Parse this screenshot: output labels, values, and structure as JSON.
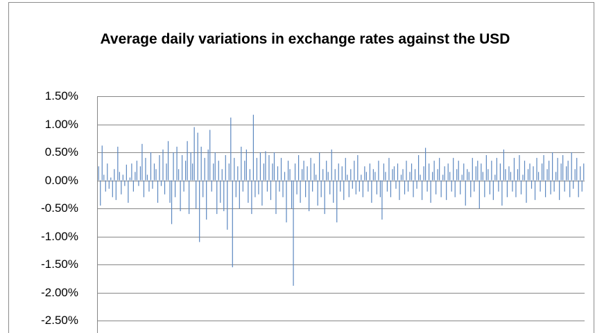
{
  "chart_data": {
    "type": "bar",
    "title": "Average daily variations in exchange rates against the USD",
    "values": [
      0.25,
      -0.45,
      0.62,
      0.1,
      -0.2,
      0.3,
      -0.15,
      0.05,
      -0.3,
      0.2,
      -0.35,
      0.6,
      0.15,
      -0.25,
      0.1,
      -0.1,
      0.28,
      -0.4,
      0.05,
      0.3,
      -0.2,
      0.15,
      0.35,
      -0.1,
      0.25,
      0.65,
      -0.3,
      0.4,
      0.1,
      -0.2,
      0.5,
      -0.15,
      0.3,
      0.2,
      -0.4,
      0.45,
      -0.1,
      0.55,
      -0.25,
      0.3,
      0.7,
      -0.4,
      -0.78,
      0.5,
      -0.3,
      0.6,
      0.2,
      -0.55,
      0.45,
      -0.2,
      0.35,
      0.7,
      -0.6,
      0.5,
      0.3,
      0.95,
      -0.5,
      0.85,
      -1.1,
      0.6,
      -0.3,
      0.4,
      -0.7,
      0.55,
      0.9,
      -0.2,
      0.3,
      0.5,
      -0.6,
      0.35,
      -0.4,
      0.2,
      -0.55,
      0.45,
      -0.88,
      0.3,
      1.12,
      -1.55,
      0.4,
      -0.3,
      0.25,
      -0.5,
      0.6,
      -0.2,
      0.35,
      0.55,
      -0.4,
      0.2,
      -0.6,
      1.17,
      -0.3,
      0.4,
      -0.25,
      0.5,
      -0.45,
      0.3,
      0.52,
      -0.2,
      0.45,
      -0.35,
      0.3,
      0.5,
      -0.6,
      0.25,
      -0.2,
      0.4,
      -0.3,
      0.15,
      -0.75,
      0.35,
      0.2,
      -0.5,
      -1.88,
      0.3,
      -0.25,
      0.45,
      -0.4,
      0.2,
      0.35,
      -0.3,
      0.25,
      -0.55,
      0.4,
      -0.2,
      0.3,
      0.1,
      -0.45,
      0.5,
      -0.3,
      0.2,
      -0.6,
      0.35,
      0.15,
      -0.25,
      0.55,
      -0.4,
      0.2,
      -0.75,
      0.3,
      -0.2,
      0.25,
      -0.35,
      0.4,
      0.1,
      -0.3,
      0.2,
      -0.15,
      0.35,
      -0.25,
      0.45,
      -0.2,
      0.1,
      -0.3,
      0.25,
      0.15,
      -0.2,
      0.3,
      -0.4,
      0.2,
      0.15,
      -0.25,
      0.35,
      -0.3,
      -0.7,
      0.3,
      0.15,
      -0.2,
      0.4,
      -0.3,
      0.2,
      0.25,
      -0.15,
      0.3,
      -0.35,
      0.1,
      0.2,
      -0.25,
      0.35,
      -0.2,
      0.15,
      0.3,
      -0.3,
      0.2,
      -0.15,
      0.45,
      0.1,
      -0.35,
      0.25,
      0.58,
      -0.2,
      0.3,
      -0.4,
      0.15,
      0.35,
      -0.25,
      0.2,
      0.4,
      -0.3,
      0.1,
      0.25,
      -0.35,
      0.3,
      0.15,
      -0.2,
      0.4,
      -0.3,
      0.2,
      0.35,
      -0.25,
      0.1,
      0.3,
      -0.45,
      0.2,
      0.15,
      -0.3,
      0.4,
      -0.2,
      0.25,
      0.35,
      -0.5,
      0.3,
      0.15,
      -0.3,
      0.45,
      0.2,
      -0.25,
      0.35,
      -0.35,
      0.1,
      0.4,
      -0.2,
      0.3,
      -0.45,
      0.55,
      0.2,
      -0.3,
      0.25,
      0.15,
      -0.2,
      0.4,
      -0.3,
      0.2,
      0.45,
      -0.25,
      0.1,
      0.35,
      -0.4,
      0.2,
      0.3,
      -0.15,
      0.25,
      -0.35,
      0.4,
      0.15,
      -0.2,
      0.3,
      0.45,
      -0.3,
      0.2,
      0.35,
      -0.25,
      0.5,
      -0.2,
      0.15,
      0.4,
      -0.35,
      0.3,
      0.45,
      -0.2,
      0.25,
      0.35,
      -0.3,
      0.5,
      -0.15,
      0.2,
      0.4,
      -0.3,
      0.25,
      -0.2,
      0.3
    ],
    "color": "#5b87c0",
    "ylim": [
      -2.5,
      1.5
    ],
    "yticks": [
      {
        "value": 1.5,
        "label": "1.50%"
      },
      {
        "value": 1,
        "label": "1.00%"
      },
      {
        "value": 0.5,
        "label": "0.50%"
      },
      {
        "value": 0,
        "label": "0.00%"
      },
      {
        "value": -0.5,
        "label": "-0.50%"
      },
      {
        "value": -1,
        "label": "-1.00%"
      },
      {
        "value": -1.5,
        "label": "-1.50%"
      },
      {
        "value": -2,
        "label": "-2.00%"
      },
      {
        "value": -2.5,
        "label": "-2.50%"
      }
    ],
    "grid": true
  }
}
